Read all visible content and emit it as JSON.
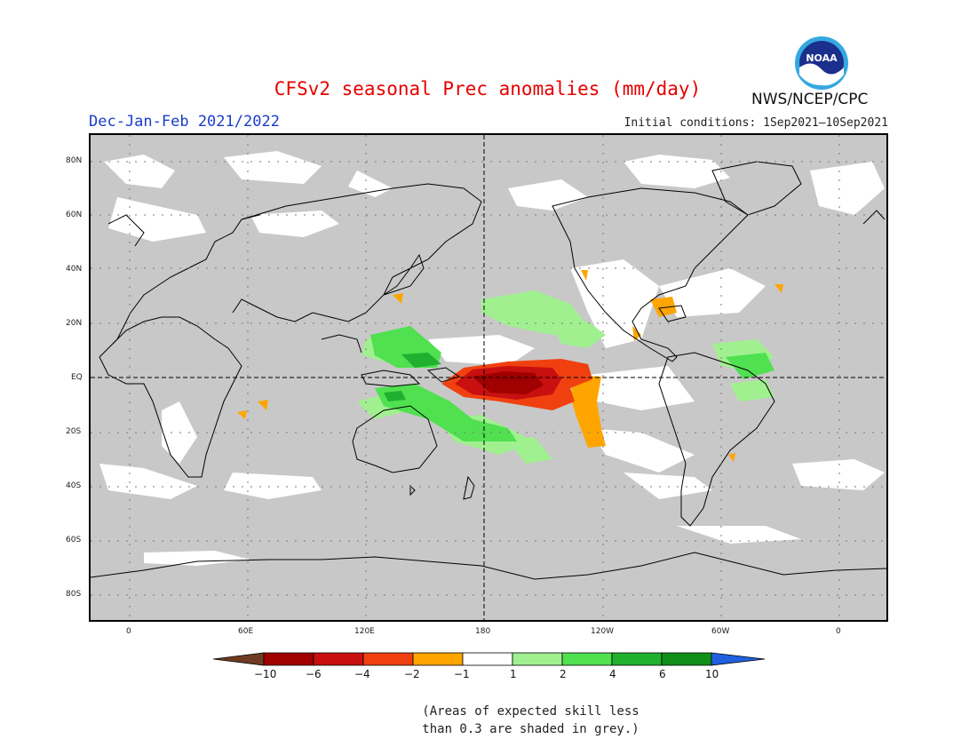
{
  "title": "CFSv2 seasonal Prec anomalies (mm/day)",
  "season": "Dec-Jan-Feb 2021/2022",
  "initial_conditions": "Initial conditions: 1Sep2021—10Sep2021",
  "agency": "NWS/NCEP/CPC",
  "logo_text": "NOAA",
  "lat_labels": [
    "80N",
    "60N",
    "40N",
    "20N",
    "EQ",
    "20S",
    "40S",
    "60S",
    "80S"
  ],
  "lon_labels": [
    "0",
    "60E",
    "120E",
    "180",
    "120W",
    "60W",
    "0"
  ],
  "legend": {
    "ticks": [
      "-10",
      "-6",
      "-4",
      "-2",
      "-1",
      "1",
      "2",
      "4",
      "6",
      "10"
    ],
    "colors": [
      "#6e3b22",
      "#a00000",
      "#c81010",
      "#f04010",
      "#ffa500",
      "#ffffff",
      "#a0f090",
      "#50e050",
      "#20b030",
      "#109018",
      "#2060e0"
    ]
  },
  "note_line1": "(Areas of expected skill less",
  "note_line2": "than 0.3 are shaded in grey.)"
}
